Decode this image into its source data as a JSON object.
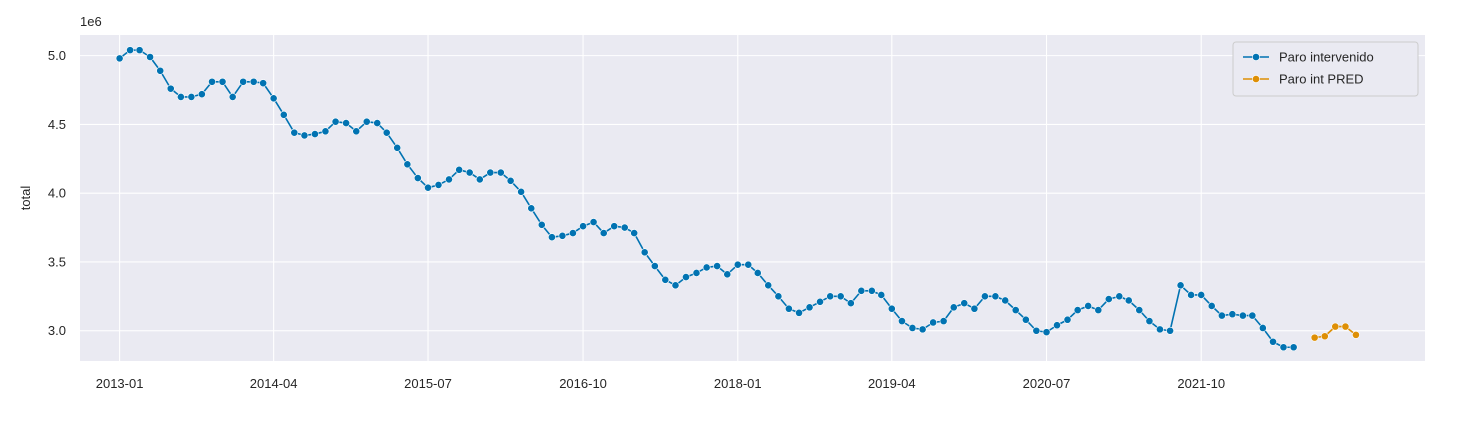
{
  "chart_data": {
    "type": "line",
    "ylabel": "total",
    "xlabel": "",
    "y_offset_label": "1e6",
    "x_tick_labels": [
      "2013-01",
      "2014-04",
      "2015-07",
      "2016-10",
      "2018-01",
      "2019-04",
      "2020-07",
      "2021-10"
    ],
    "y_tick_labels": [
      "3.0",
      "3.5",
      "4.0",
      "4.5",
      "5.0"
    ],
    "y_ticks": [
      3000000,
      3500000,
      4000000,
      4500000,
      5000000
    ],
    "xlim": [
      "2012-09-06",
      "2023-07-24"
    ],
    "ylim": [
      2780000,
      5150000
    ],
    "grid": true,
    "legend_position": "upper right",
    "colors": {
      "background": "#EAEAF2",
      "grid": "#FFFFFF",
      "series1": "#0173B2",
      "series2": "#DE8F05"
    },
    "series": [
      {
        "name": "Paro intervenido",
        "marker": "circle",
        "x": [
          "2013-01",
          "2013-02",
          "2013-03",
          "2013-04",
          "2013-05",
          "2013-06",
          "2013-07",
          "2013-08",
          "2013-09",
          "2013-10",
          "2013-11",
          "2013-12",
          "2014-01",
          "2014-02",
          "2014-03",
          "2014-04",
          "2014-05",
          "2014-06",
          "2014-07",
          "2014-08",
          "2014-09",
          "2014-10",
          "2014-11",
          "2014-12",
          "2015-01",
          "2015-02",
          "2015-03",
          "2015-04",
          "2015-05",
          "2015-06",
          "2015-07",
          "2015-08",
          "2015-09",
          "2015-10",
          "2015-11",
          "2015-12",
          "2016-01",
          "2016-02",
          "2016-03",
          "2016-04",
          "2016-05",
          "2016-06",
          "2016-07",
          "2016-08",
          "2016-09",
          "2016-10",
          "2016-11",
          "2016-12",
          "2017-01",
          "2017-02",
          "2017-03",
          "2017-04",
          "2017-05",
          "2017-06",
          "2017-07",
          "2017-08",
          "2017-09",
          "2017-10",
          "2017-11",
          "2017-12",
          "2018-01",
          "2018-02",
          "2018-03",
          "2018-04",
          "2018-05",
          "2018-06",
          "2018-07",
          "2018-08",
          "2018-09",
          "2018-10",
          "2018-11",
          "2018-12",
          "2019-01",
          "2019-02",
          "2019-03",
          "2019-04",
          "2019-05",
          "2019-06",
          "2019-07",
          "2019-08",
          "2019-09",
          "2019-10",
          "2019-11",
          "2019-12",
          "2020-01",
          "2020-02",
          "2020-03",
          "2020-04",
          "2020-05",
          "2020-06",
          "2020-07",
          "2020-08",
          "2020-09",
          "2020-10",
          "2020-11",
          "2020-12",
          "2021-01",
          "2021-02",
          "2021-03",
          "2021-04",
          "2021-05",
          "2021-06",
          "2021-07",
          "2021-08",
          "2021-09",
          "2021-10",
          "2021-11",
          "2021-12",
          "2022-01",
          "2022-02",
          "2022-03",
          "2022-04",
          "2022-05",
          "2022-06",
          "2022-07"
        ],
        "values": [
          4980000,
          5040000,
          5040000,
          4990000,
          4890000,
          4760000,
          4700000,
          4700000,
          4720000,
          4810000,
          4810000,
          4700000,
          4810000,
          4810000,
          4800000,
          4690000,
          4570000,
          4440000,
          4420000,
          4430000,
          4450000,
          4520000,
          4510000,
          4450000,
          4520000,
          4510000,
          4440000,
          4330000,
          4210000,
          4110000,
          4040000,
          4060000,
          4100000,
          4170000,
          4150000,
          4100000,
          4150000,
          4150000,
          4090000,
          4010000,
          3890000,
          3770000,
          3680000,
          3690000,
          3710000,
          3760000,
          3790000,
          3710000,
          3760000,
          3750000,
          3710000,
          3570000,
          3470000,
          3370000,
          3330000,
          3390000,
          3420000,
          3460000,
          3470000,
          3410000,
          3480000,
          3480000,
          3420000,
          3330000,
          3250000,
          3160000,
          3130000,
          3170000,
          3210000,
          3250000,
          3250000,
          3200000,
          3290000,
          3290000,
          3260000,
          3160000,
          3070000,
          3020000,
          3010000,
          3060000,
          3070000,
          3170000,
          3200000,
          3160000,
          3250000,
          3250000,
          3220000,
          3150000,
          3080000,
          3000000,
          2990000,
          3040000,
          3080000,
          3150000,
          3180000,
          3150000,
          3230000,
          3250000,
          3220000,
          3150000,
          3070000,
          3010000,
          3000000,
          3330000,
          3260000,
          3260000,
          3180000,
          3110000,
          3120000,
          3110000,
          3110000,
          3020000,
          2920000,
          2880000,
          2880000
        ]
      },
      {
        "name": "Paro int PRED",
        "marker": "circle",
        "x": [
          "2022-09",
          "2022-10",
          "2022-11",
          "2022-12",
          "2023-01"
        ],
        "values": [
          2950000,
          2960000,
          3030000,
          3030000,
          2970000
        ]
      }
    ]
  }
}
